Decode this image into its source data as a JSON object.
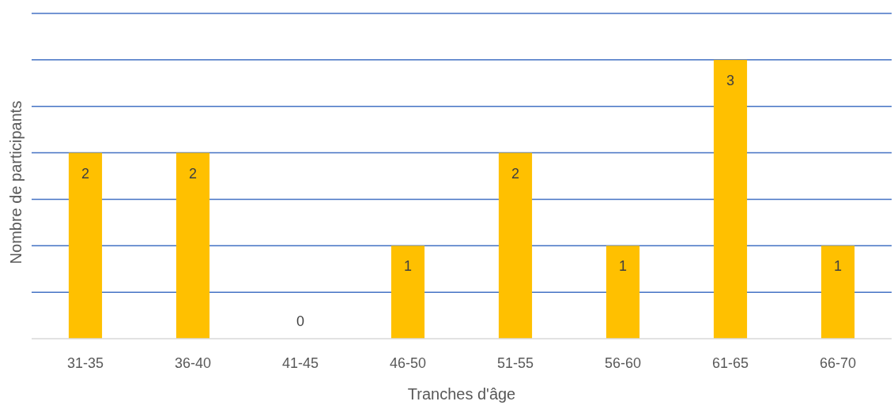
{
  "chart_data": {
    "type": "bar",
    "xlabel": "Tranches d'âge",
    "ylabel": "Nombre de participants",
    "categories": [
      "31-35",
      "36-40",
      "41-45",
      "46-50",
      "51-55",
      "56-60",
      "61-65",
      "66-70"
    ],
    "values": [
      2,
      2,
      0,
      1,
      2,
      1,
      3,
      1
    ],
    "color": "#ffc000",
    "ylim": [
      0,
      3.5
    ],
    "yticks": [
      {
        "value": 0.5,
        "label": null
      },
      {
        "value": 1,
        "label": null
      },
      {
        "value": 1.5,
        "label": null
      },
      {
        "value": 2,
        "label": null
      },
      {
        "value": 2.5,
        "label": null
      },
      {
        "value": 3,
        "label": null
      },
      {
        "value": 3.5,
        "label": null
      }
    ],
    "grid": "y",
    "tick_labels": "x",
    "data_labels": true
  }
}
